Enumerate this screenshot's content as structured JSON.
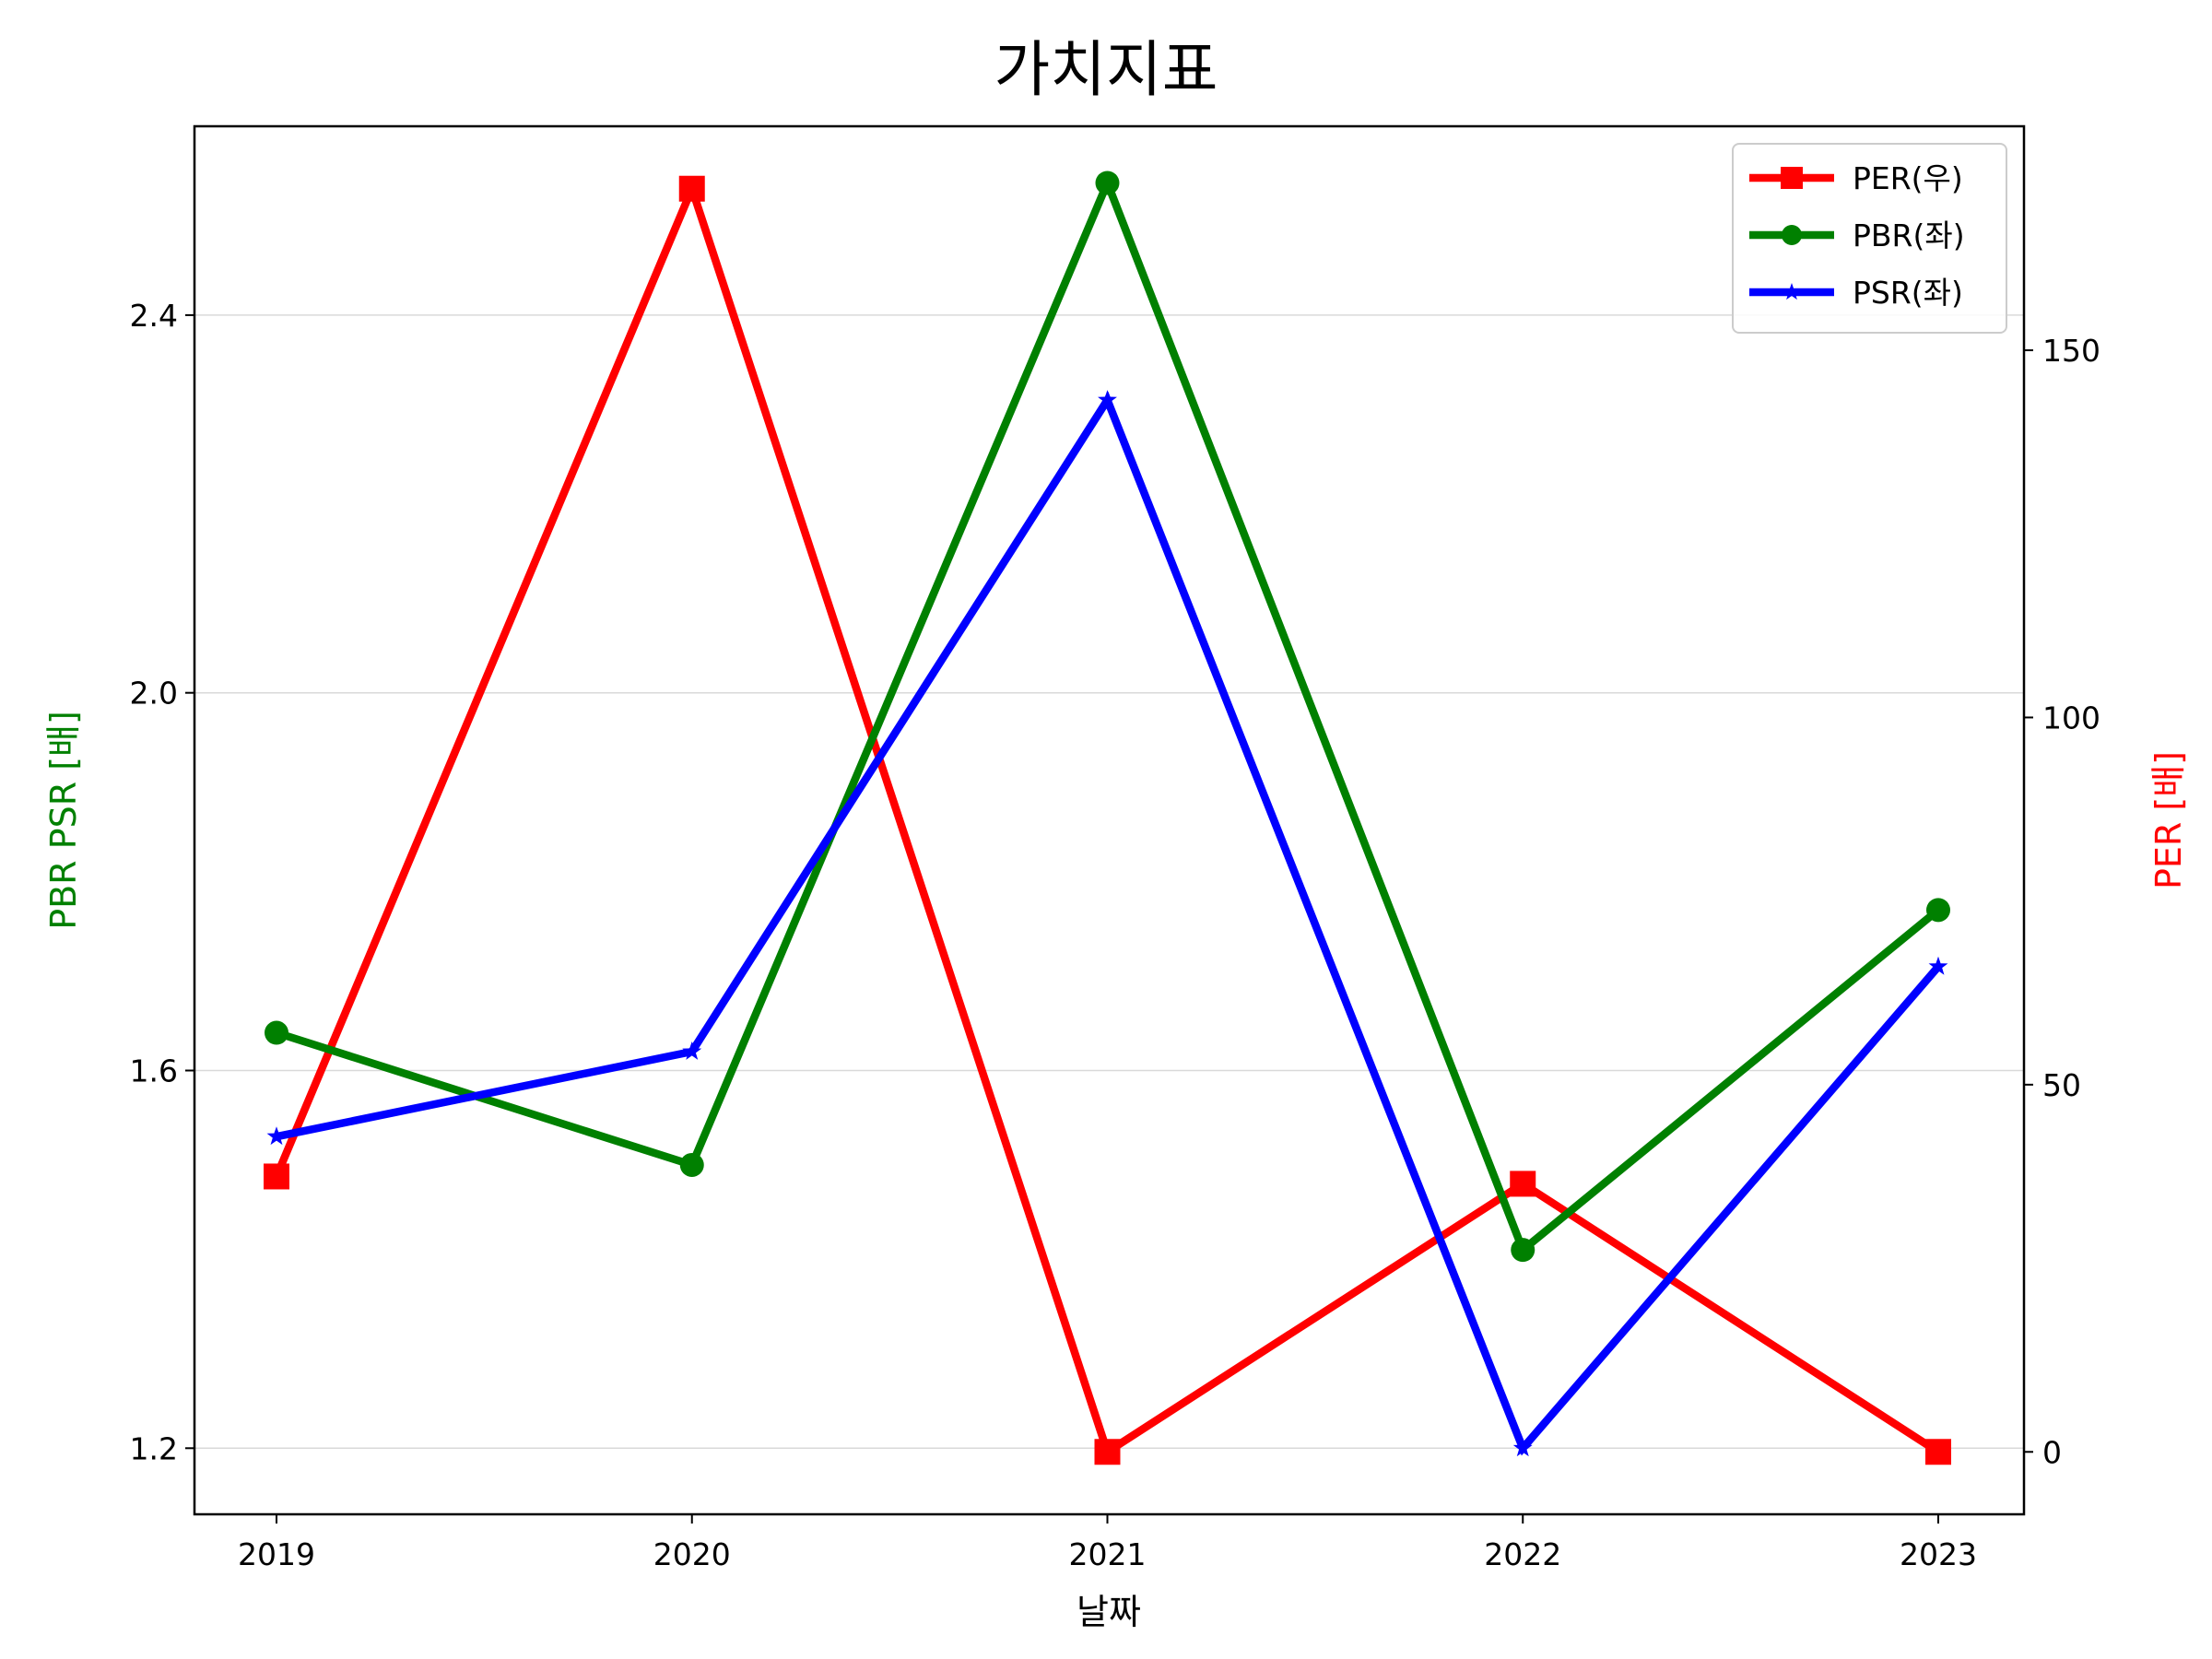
{
  "chart_data": {
    "type": "line",
    "title": "가치지표",
    "xlabel": "날짜",
    "ylabel_left": "PBR PSR [배]",
    "ylabel_right": "PER [배]",
    "categories": [
      "2019",
      "2020",
      "2021",
      "2022",
      "2023"
    ],
    "left_axis": {
      "ylim": [
        1.13,
        2.6
      ],
      "ticks": [
        1.2,
        1.6,
        2.0,
        2.4
      ],
      "tick_labels": [
        "1.2",
        "1.6",
        "2.0",
        "2.4"
      ],
      "label_color": "#008000"
    },
    "right_axis": {
      "ylim": [
        -8.5,
        180.5
      ],
      "ticks": [
        0,
        50,
        100,
        150
      ],
      "tick_labels": [
        "0",
        "50",
        "100",
        "150"
      ],
      "label_color": "#ff0000"
    },
    "grid": "horizontal (left axis ticks)",
    "legend_position": "top-right",
    "series": [
      {
        "name": "PER(우)",
        "axis": "right",
        "color": "#ff0000",
        "marker": "square",
        "values": [
          37.5,
          172.0,
          0.0,
          36.5,
          0.0
        ]
      },
      {
        "name": "PBR(좌)",
        "axis": "left",
        "color": "#008000",
        "marker": "circle",
        "values": [
          1.64,
          1.5,
          2.54,
          1.41,
          1.77
        ]
      },
      {
        "name": "PSR(좌)",
        "axis": "left",
        "color": "#0000ff",
        "marker": "star",
        "values": [
          1.53,
          1.62,
          2.31,
          1.2,
          1.71
        ]
      }
    ]
  }
}
